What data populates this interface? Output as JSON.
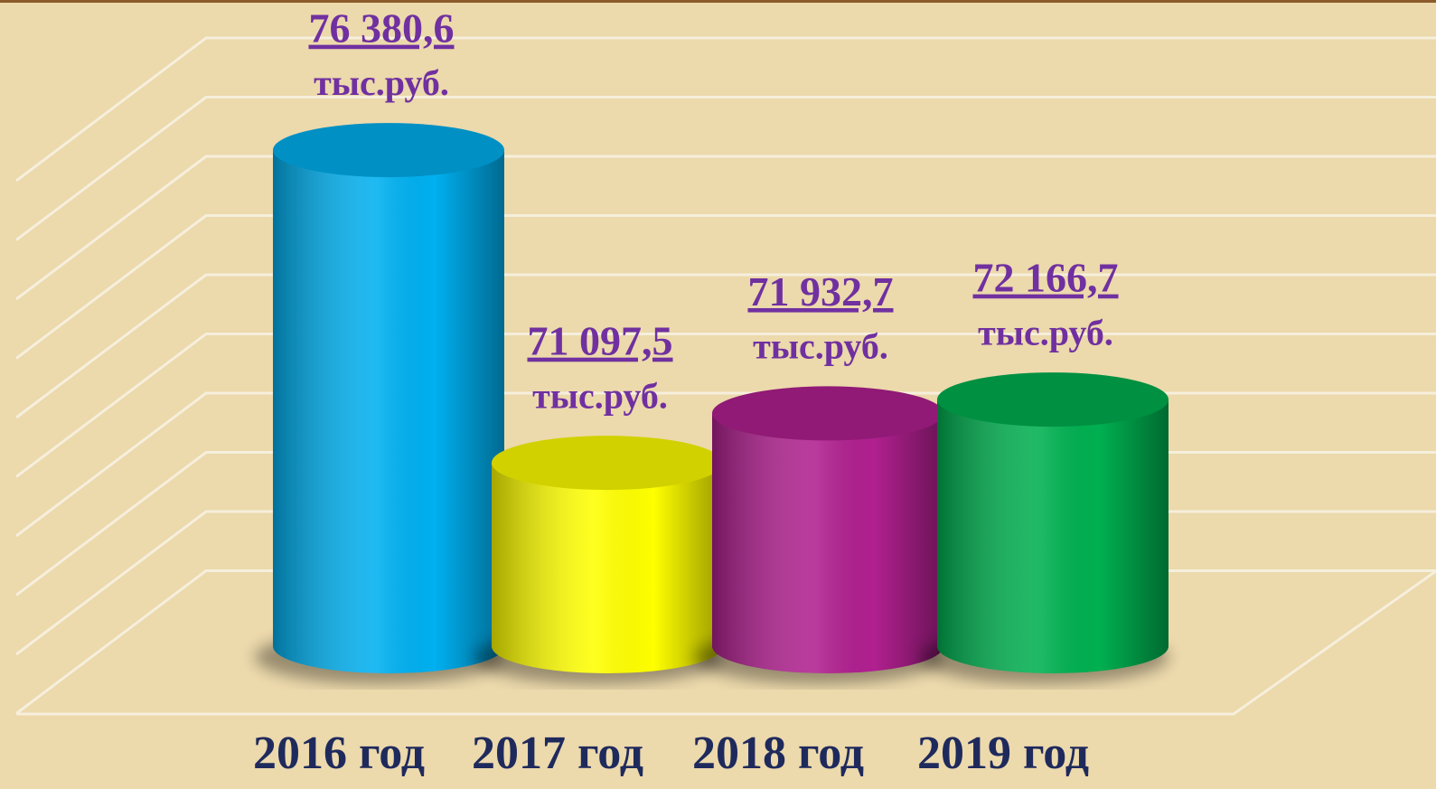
{
  "chart_data": {
    "type": "cylinder",
    "categories": [
      "2016 год",
      "2017 год",
      "2018 год",
      "2019 год"
    ],
    "values": [
      76380.6,
      71097.5,
      71932.7,
      72166.7
    ],
    "value_labels": [
      "76 380,6",
      "71 097,5",
      "71 932,7",
      "72 166,7"
    ],
    "unit": "тыс.руб.",
    "colors": [
      "#00b0f0",
      "#ffff00",
      "#b0208f",
      "#00b050"
    ],
    "ylim": [
      68000,
      78000
    ],
    "yticks": [
      68000,
      69000,
      70000,
      71000,
      72000,
      73000,
      74000,
      75000,
      76000,
      77000,
      78000
    ],
    "grid": true
  }
}
